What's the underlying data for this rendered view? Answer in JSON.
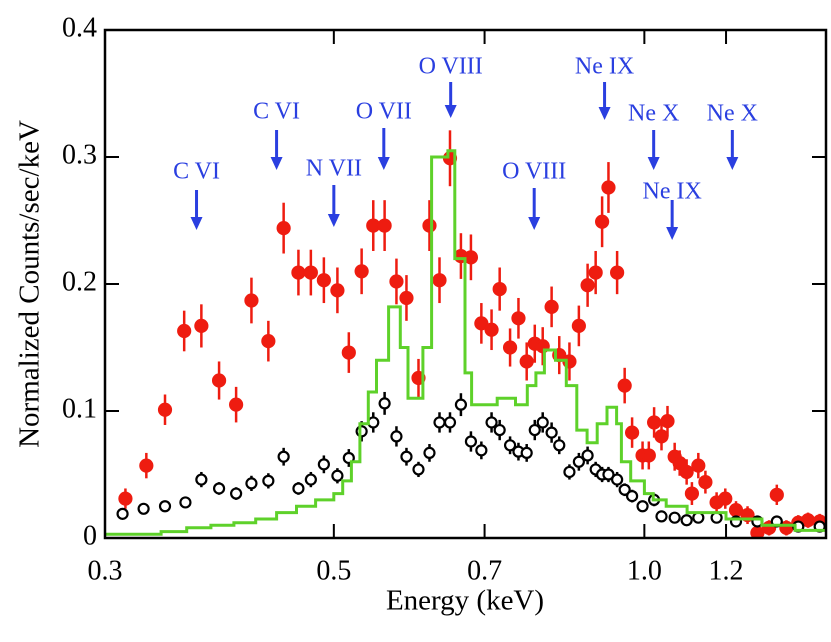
{
  "chart_data": {
    "type": "scatter",
    "xlabel": "Energy (keV)",
    "ylabel": "Normalized Counts/sec/keV",
    "xscale": "log",
    "xlim": [
      0.3,
      1.5
    ],
    "ylim": [
      0,
      0.4
    ],
    "xticks": [
      0.3,
      0.5,
      0.7,
      {
        "value": 1,
        "label": "1.0"
      },
      1.2
    ],
    "yticks": [
      0,
      0.1,
      0.2,
      0.3,
      0.4
    ],
    "series": [
      {
        "color": "#ee1c10",
        "marker": "filled",
        "x": [
          0.314,
          0.329,
          0.343,
          0.358,
          0.372,
          0.387,
          0.402,
          0.416,
          0.432,
          0.447,
          0.462,
          0.475,
          0.489,
          0.504,
          0.517,
          0.532,
          0.546,
          0.56,
          0.575,
          0.588,
          0.604,
          0.619,
          0.633,
          0.648,
          0.664,
          0.679,
          0.695,
          0.711,
          0.724,
          0.741,
          0.755,
          0.769,
          0.783,
          0.797,
          0.813,
          0.827,
          0.846,
          0.864,
          0.881,
          0.897,
          0.91,
          0.923,
          0.941,
          0.957,
          0.973,
          0.996,
          1.01,
          1.022,
          1.039,
          1.053,
          1.07,
          1.082,
          1.099,
          1.112,
          1.128,
          1.146,
          1.175,
          1.198,
          1.227,
          1.259,
          1.287,
          1.321,
          1.344,
          1.373,
          1.41,
          1.441,
          1.479
        ],
        "values": [
          0.031,
          0.057,
          0.101,
          0.163,
          0.167,
          0.124,
          0.105,
          0.187,
          0.155,
          0.244,
          0.209,
          0.209,
          0.203,
          0.195,
          0.146,
          0.21,
          0.246,
          0.246,
          0.202,
          0.189,
          0.126,
          0.246,
          0.203,
          0.299,
          0.222,
          0.221,
          0.169,
          0.164,
          0.196,
          0.15,
          0.173,
          0.139,
          0.153,
          0.151,
          0.182,
          0.144,
          0.139,
          0.167,
          0.199,
          0.209,
          0.249,
          0.276,
          0.209,
          0.12,
          0.083,
          0.065,
          0.065,
          0.091,
          0.08,
          0.092,
          0.064,
          0.059,
          0.052,
          0.035,
          0.057,
          0.044,
          0.028,
          0.031,
          0.022,
          0.018,
          0.004,
          0.008,
          0.034,
          0.008,
          0.012,
          0.014,
          0.013
        ],
        "errors": [
          0.008,
          0.01,
          0.012,
          0.016,
          0.017,
          0.015,
          0.014,
          0.018,
          0.016,
          0.02,
          0.018,
          0.018,
          0.018,
          0.018,
          0.016,
          0.018,
          0.02,
          0.02,
          0.018,
          0.018,
          0.015,
          0.02,
          0.018,
          0.022,
          0.018,
          0.018,
          0.016,
          0.016,
          0.017,
          0.015,
          0.016,
          0.015,
          0.015,
          0.015,
          0.016,
          0.015,
          0.015,
          0.016,
          0.017,
          0.017,
          0.02,
          0.02,
          0.017,
          0.014,
          0.012,
          0.011,
          0.011,
          0.012,
          0.011,
          0.012,
          0.011,
          0.01,
          0.01,
          0.009,
          0.01,
          0.009,
          0.008,
          0.008,
          0.007,
          0.007,
          0.006,
          0.006,
          0.008,
          0.006,
          0.006,
          0.006,
          0.006
        ]
      },
      {
        "color": "#000000",
        "marker": "open",
        "x": [
          0.312,
          0.327,
          0.343,
          0.359,
          0.372,
          0.387,
          0.402,
          0.416,
          0.432,
          0.447,
          0.462,
          0.475,
          0.489,
          0.504,
          0.517,
          0.532,
          0.546,
          0.56,
          0.575,
          0.588,
          0.604,
          0.619,
          0.633,
          0.648,
          0.664,
          0.679,
          0.695,
          0.711,
          0.724,
          0.741,
          0.755,
          0.769,
          0.783,
          0.797,
          0.813,
          0.827,
          0.846,
          0.864,
          0.881,
          0.897,
          0.91,
          0.923,
          0.941,
          0.957,
          0.973,
          0.996,
          1.022,
          1.039,
          1.07,
          1.099,
          1.128,
          1.175,
          1.227,
          1.287,
          1.344,
          1.41,
          1.479
        ],
        "values": [
          0.019,
          0.023,
          0.025,
          0.028,
          0.046,
          0.039,
          0.035,
          0.043,
          0.045,
          0.064,
          0.039,
          0.046,
          0.058,
          0.049,
          0.063,
          0.084,
          0.091,
          0.106,
          0.08,
          0.064,
          0.054,
          0.067,
          0.091,
          0.091,
          0.105,
          0.076,
          0.069,
          0.091,
          0.085,
          0.073,
          0.068,
          0.067,
          0.085,
          0.091,
          0.083,
          0.073,
          0.052,
          0.06,
          0.065,
          0.054,
          0.05,
          0.05,
          0.046,
          0.038,
          0.033,
          0.025,
          0.03,
          0.017,
          0.016,
          0.014,
          0.016,
          0.016,
          0.013,
          0.013,
          0.013,
          0.009,
          0.009
        ],
        "errors": [
          0.004,
          0.004,
          0.004,
          0.004,
          0.006,
          0.005,
          0.005,
          0.006,
          0.006,
          0.007,
          0.005,
          0.006,
          0.007,
          0.006,
          0.007,
          0.008,
          0.008,
          0.009,
          0.008,
          0.007,
          0.006,
          0.007,
          0.008,
          0.008,
          0.009,
          0.008,
          0.007,
          0.008,
          0.008,
          0.007,
          0.007,
          0.007,
          0.008,
          0.008,
          0.008,
          0.007,
          0.006,
          0.007,
          0.007,
          0.006,
          0.006,
          0.006,
          0.006,
          0.005,
          0.005,
          0.004,
          0.005,
          0.004,
          0.004,
          0.004,
          0.004,
          0.004,
          0.004,
          0.004,
          0.004,
          0.003,
          0.003
        ]
      },
      {
        "color": "#5ed12a",
        "marker": "step",
        "x": [
          0.3,
          0.34,
          0.36,
          0.38,
          0.4,
          0.42,
          0.44,
          0.46,
          0.48,
          0.5,
          0.51,
          0.52,
          0.53,
          0.54,
          0.55,
          0.565,
          0.58,
          0.59,
          0.61,
          0.622,
          0.645,
          0.655,
          0.67,
          0.68,
          0.69,
          0.72,
          0.75,
          0.77,
          0.785,
          0.8,
          0.82,
          0.84,
          0.86,
          0.88,
          0.9,
          0.92,
          0.94,
          0.95,
          0.97,
          1.0,
          1.02,
          1.05,
          1.1,
          1.2,
          1.3,
          1.4
        ],
        "values": [
          0.003,
          0.005,
          0.008,
          0.01,
          0.012,
          0.015,
          0.02,
          0.025,
          0.03,
          0.035,
          0.045,
          0.06,
          0.09,
          0.115,
          0.14,
          0.182,
          0.15,
          0.11,
          0.15,
          0.3,
          0.305,
          0.22,
          0.13,
          0.105,
          0.105,
          0.11,
          0.105,
          0.12,
          0.13,
          0.148,
          0.14,
          0.12,
          0.085,
          0.075,
          0.09,
          0.103,
          0.09,
          0.06,
          0.045,
          0.035,
          0.03,
          0.025,
          0.02,
          0.015,
          0.01,
          0.006
        ]
      }
    ],
    "annotations": [
      {
        "text": "C VI",
        "x": 0.368
      },
      {
        "text": "C VI",
        "x": 0.44
      },
      {
        "text": "N VII",
        "x": 0.5
      },
      {
        "text": "O VII",
        "x": 0.559
      },
      {
        "text": "O VIII",
        "x": 0.649
      },
      {
        "text": "O VIII",
        "x": 0.782
      },
      {
        "text": "Ne IX",
        "x": 0.915
      },
      {
        "text": "Ne X",
        "x": 1.021
      },
      {
        "text": "Ne X",
        "x": 1.217
      },
      {
        "text": "Ne IX",
        "x": 1.064
      }
    ]
  }
}
